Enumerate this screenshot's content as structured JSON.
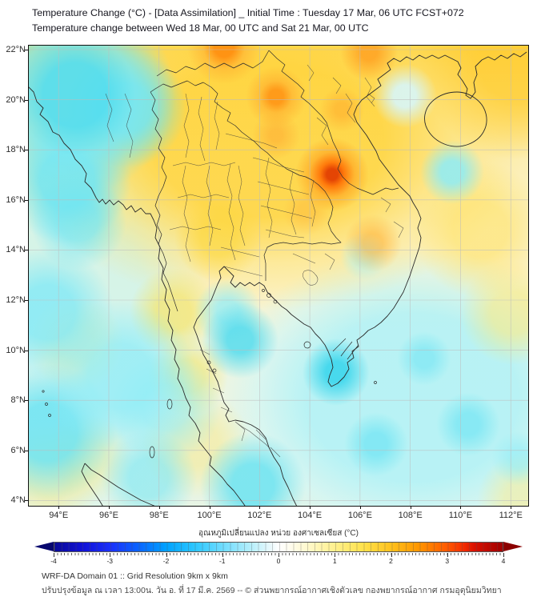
{
  "title": {
    "line1": "Temperature Change (°C) - [Data Assimilation] _ Initial Time : Tuesday 17 Mar, 06 UTC FCST+072",
    "line2": "Temperature change between Wed 18 Mar, 00 UTC and Sat 21 Mar, 00 UTC"
  },
  "axes": {
    "lat_labels": [
      "22°N",
      "20°N",
      "18°N",
      "16°N",
      "14°N",
      "12°N",
      "10°N",
      "8°N",
      "6°N",
      "4°N"
    ],
    "lon_labels": [
      "94°E",
      "96°E",
      "98°E",
      "100°E",
      "102°E",
      "104°E",
      "106°E",
      "108°E",
      "110°E",
      "112°E"
    ]
  },
  "colorbar": {
    "label": "อุณหภูมิเปลี่ยนแปลง หน่วย องศาเซลเซียส (°C)",
    "ticks": [
      "-4",
      "-3",
      "-2",
      "-1",
      "0",
      "1",
      "2",
      "3",
      "4"
    ],
    "min_color": "#0a0a96",
    "zero_color": "#ffffff",
    "max_color": "#a00000"
  },
  "footer": {
    "line1": "WRF-DA Domain 01 :: Grid Resolution 9km x 9km",
    "line2": "ปรับปรุงข้อมูล ณ เวลา 13:00น. วัน อ. ที่ 17 มี.ค. 2569 -- © ส่วนพยากรณ์อากาศเชิงตัวเลข กองพยากรณ์อากาศ กรมอุตุนิยมวิทยา"
  },
  "chart_data": {
    "type": "heatmap",
    "title": "Temperature change (°C) between Wed 18 Mar 00 UTC and Sat 21 Mar 00 UTC, WRF-DA forecast FCST+072",
    "x_axis": {
      "label": "longitude",
      "ticks_deg_e": [
        94,
        96,
        98,
        100,
        102,
        104,
        106,
        108,
        110,
        112
      ],
      "range_deg_e": [
        92.8,
        112.7
      ]
    },
    "y_axis": {
      "label": "latitude",
      "ticks_deg_n": [
        22,
        20,
        18,
        16,
        14,
        12,
        10,
        8,
        6,
        4
      ],
      "range_deg_n": [
        3.8,
        22.2
      ]
    },
    "scale": {
      "units": "°C",
      "min": -4,
      "max": 4,
      "tick_step": 1
    },
    "grid": true,
    "features": [
      {
        "name": "warming-maximum",
        "lon_e": 104.9,
        "lat_n": 16.9,
        "value_c": 3.5
      },
      {
        "name": "warm-band-northern-indochina",
        "lat_n": "18-22",
        "value_c": "1 to 2"
      },
      {
        "name": "warm-spots-north",
        "lon_e": 102.5,
        "lat_n": 21.5,
        "value_c": 2.5
      },
      {
        "name": "cooling-bay-of-bengal",
        "lon_e": 93.5,
        "lat_n": 20.5,
        "value_c": -1
      },
      {
        "name": "cooling-myanmar-coast",
        "lon_e": 93.3,
        "lat_n": 17.0,
        "value_c": -1
      },
      {
        "name": "cooling-south-china-sea",
        "lon_e": 108,
        "lat_n": 8.5,
        "value_c": -0.5
      },
      {
        "name": "cooling-mekong-delta-tip",
        "lon_e": 105.0,
        "lat_n": 9.0,
        "value_c": -1
      },
      {
        "name": "cooling-gulf-of-thailand",
        "lon_e": 101.3,
        "lat_n": 10.4,
        "value_c": -0.8
      },
      {
        "name": "near-zero-central-band",
        "lat_n": "13-15",
        "value_c": "0 to 0.5"
      }
    ]
  }
}
